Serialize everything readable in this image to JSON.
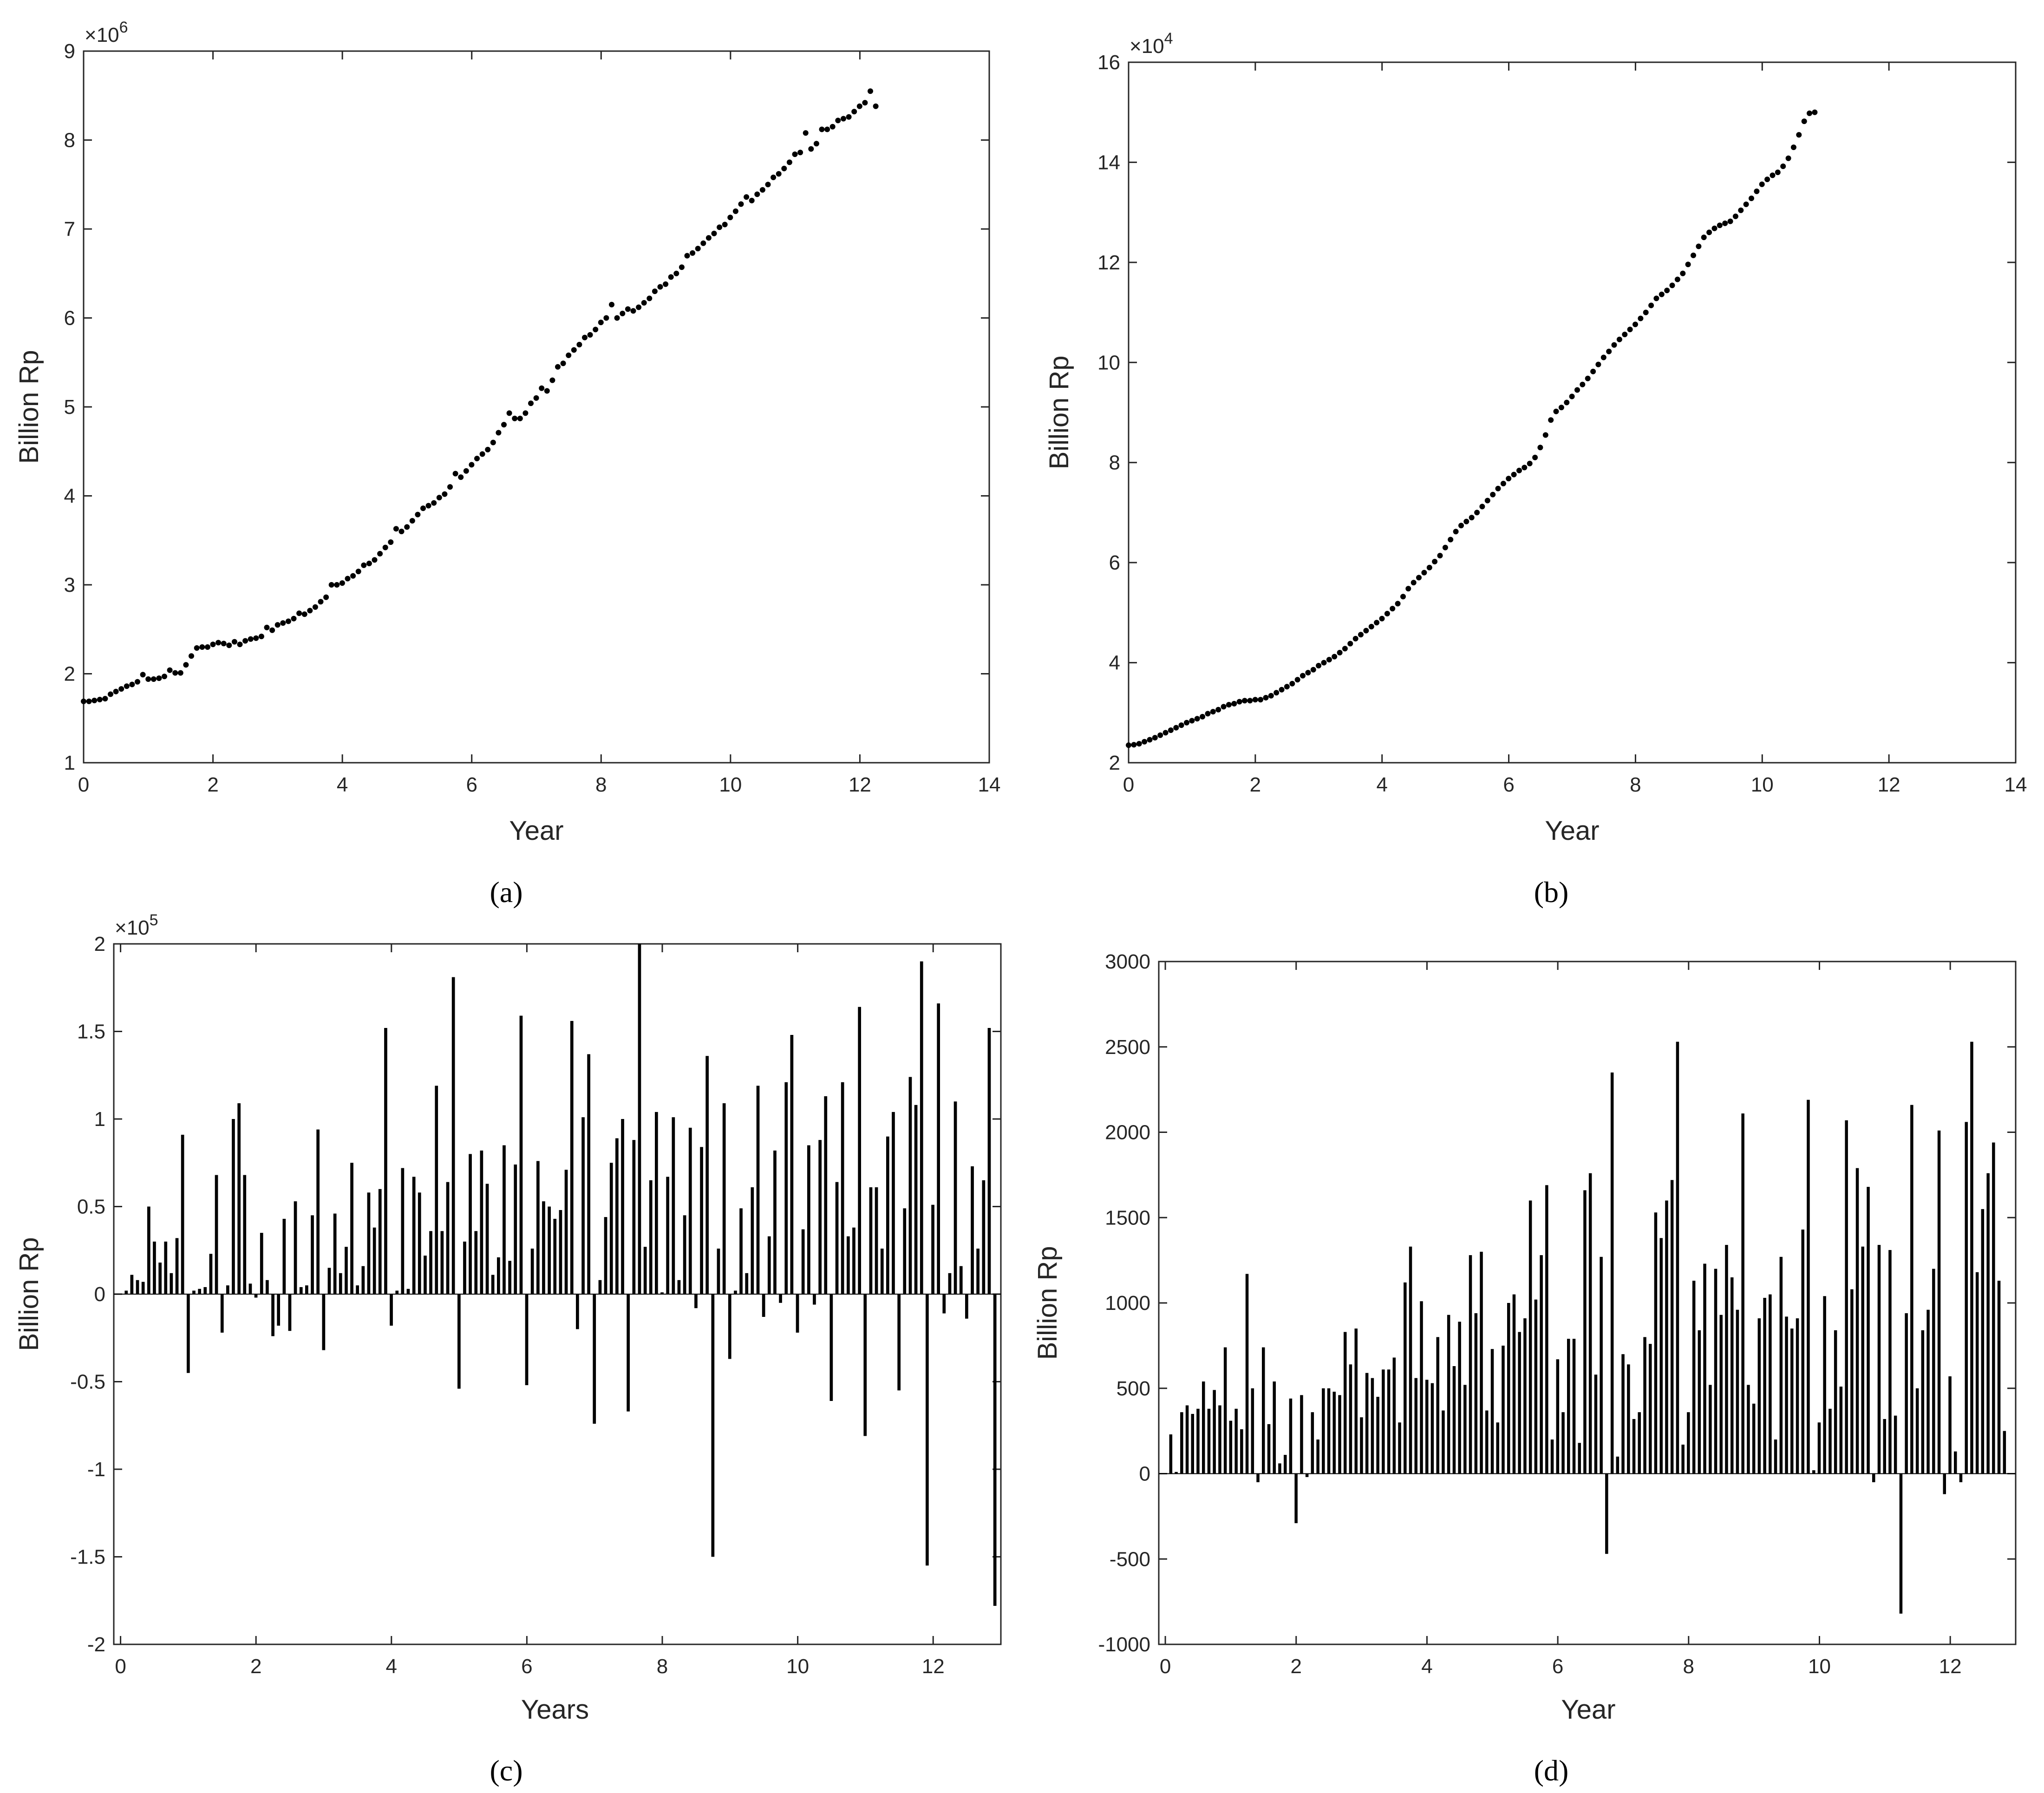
{
  "colors": {
    "marker": "#000000",
    "axis": "#262626",
    "background": "#ffffff"
  },
  "chart_data": [
    {
      "id": "a",
      "panel_label": "(a)",
      "type": "scatter",
      "xlabel": "Year",
      "ylabel": "Billion Rp",
      "exponent": "×10^6",
      "exp_base": "×10",
      "exp_power": "6",
      "xlim": [
        0,
        14
      ],
      "ylim": [
        1,
        9
      ],
      "x_ticks": [
        0,
        2,
        4,
        6,
        8,
        10,
        12,
        14
      ],
      "y_ticks": [
        1,
        2,
        3,
        4,
        5,
        6,
        7,
        8,
        9
      ],
      "x_tick_labels": [
        "0",
        "2",
        "4",
        "6",
        "8",
        "10",
        "12",
        "14"
      ],
      "y_tick_labels": [
        "1",
        "2",
        "3",
        "4",
        "5",
        "6",
        "7",
        "8",
        "9"
      ],
      "x_start": 0,
      "x_step": 0.0833,
      "y": [
        1.69,
        1.69,
        1.7,
        1.71,
        1.72,
        1.77,
        1.8,
        1.83,
        1.86,
        1.88,
        1.91,
        1.99,
        1.94,
        1.94,
        1.95,
        1.97,
        2.04,
        2.01,
        2.01,
        2.1,
        2.2,
        2.29,
        2.3,
        2.3,
        2.33,
        2.35,
        2.34,
        2.32,
        2.36,
        2.33,
        2.37,
        2.39,
        2.4,
        2.42,
        2.52,
        2.49,
        2.55,
        2.57,
        2.59,
        2.62,
        2.68,
        2.67,
        2.71,
        2.75,
        2.81,
        2.86,
        3.0,
        3.0,
        3.02,
        3.07,
        3.1,
        3.15,
        3.22,
        3.24,
        3.28,
        3.35,
        3.42,
        3.48,
        3.63,
        3.6,
        3.65,
        3.72,
        3.79,
        3.86,
        3.89,
        3.92,
        3.98,
        4.02,
        4.1,
        4.25,
        4.21,
        4.28,
        4.35,
        4.42,
        4.47,
        4.52,
        4.6,
        4.71,
        4.8,
        4.93,
        4.87,
        4.87,
        4.93,
        5.04,
        5.1,
        5.21,
        5.18,
        5.3,
        5.45,
        5.49,
        5.58,
        5.64,
        5.7,
        5.78,
        5.81,
        5.87,
        5.95,
        6.0,
        6.15,
        6.0,
        6.05,
        6.1,
        6.08,
        6.12,
        6.17,
        6.22,
        6.3,
        6.35,
        6.38,
        6.46,
        6.5,
        6.57,
        6.7,
        6.73,
        6.78,
        6.84,
        6.9,
        6.95,
        7.02,
        7.05,
        7.13,
        7.2,
        7.28,
        7.36,
        7.32,
        7.39,
        7.44,
        7.5,
        7.58,
        7.62,
        7.68,
        7.75,
        7.84,
        7.86,
        8.08,
        7.9,
        7.96,
        8.12,
        8.12,
        8.15,
        8.22,
        8.24,
        8.26,
        8.32,
        8.38,
        8.42,
        8.55,
        8.38
      ]
    },
    {
      "id": "b",
      "panel_label": "(b)",
      "type": "scatter",
      "xlabel": "Year",
      "ylabel": "Billion Rp",
      "exponent": "×10^4",
      "exp_base": "×10",
      "exp_power": "4",
      "xlim": [
        0,
        14
      ],
      "ylim": [
        2,
        16
      ],
      "x_ticks": [
        0,
        2,
        4,
        6,
        8,
        10,
        12,
        14
      ],
      "y_ticks": [
        2,
        4,
        6,
        8,
        10,
        12,
        14,
        16
      ],
      "x_tick_labels": [
        "0",
        "2",
        "4",
        "6",
        "8",
        "10",
        "12",
        "14"
      ],
      "y_tick_labels": [
        "2",
        "4",
        "6",
        "8",
        "10",
        "12",
        "14",
        "16"
      ],
      "x_start": 0,
      "x_step": 0.0833,
      "y": [
        2.35,
        2.36,
        2.38,
        2.42,
        2.46,
        2.5,
        2.55,
        2.6,
        2.65,
        2.7,
        2.75,
        2.8,
        2.84,
        2.88,
        2.92,
        2.98,
        3.02,
        3.06,
        3.12,
        3.16,
        3.18,
        3.22,
        3.24,
        3.24,
        3.26,
        3.26,
        3.3,
        3.34,
        3.4,
        3.46,
        3.52,
        3.58,
        3.66,
        3.74,
        3.8,
        3.86,
        3.94,
        4.0,
        4.06,
        4.12,
        4.2,
        4.28,
        4.38,
        4.48,
        4.56,
        4.64,
        4.72,
        4.8,
        4.88,
        4.98,
        5.08,
        5.18,
        5.32,
        5.48,
        5.6,
        5.7,
        5.8,
        5.9,
        6.02,
        6.14,
        6.3,
        6.46,
        6.62,
        6.74,
        6.82,
        6.9,
        7.0,
        7.12,
        7.24,
        7.36,
        7.48,
        7.58,
        7.68,
        7.76,
        7.84,
        7.9,
        7.98,
        8.1,
        8.3,
        8.55,
        8.85,
        9.02,
        9.1,
        9.2,
        9.32,
        9.45,
        9.56,
        9.68,
        9.82,
        9.96,
        10.1,
        10.22,
        10.35,
        10.46,
        10.56,
        10.66,
        10.76,
        10.88,
        11.0,
        11.14,
        11.28,
        11.36,
        11.44,
        11.54,
        11.66,
        11.78,
        11.96,
        12.14,
        12.32,
        12.5,
        12.6,
        12.68,
        12.74,
        12.78,
        12.82,
        12.92,
        13.04,
        13.16,
        13.28,
        13.42,
        13.56,
        13.66,
        13.74,
        13.8,
        13.92,
        14.08,
        14.3,
        14.55,
        14.82,
        14.98,
        15.0
      ]
    },
    {
      "id": "c",
      "panel_label": "(c)",
      "type": "bar",
      "xlabel": "Years",
      "ylabel": "Billion Rp",
      "exponent": "×10^5",
      "exp_base": "×10",
      "exp_power": "5",
      "xlim": [
        -0.1,
        13
      ],
      "ylim": [
        -2,
        2
      ],
      "x_ticks": [
        0,
        2,
        4,
        6,
        8,
        10,
        12
      ],
      "y_ticks": [
        -2,
        -1.5,
        -1,
        -0.5,
        0,
        0.5,
        1,
        1.5,
        2
      ],
      "x_tick_labels": [
        "0",
        "2",
        "4",
        "6",
        "8",
        "10",
        "12"
      ],
      "y_tick_labels": [
        "-2",
        "-1.5",
        "-1",
        "-0.5",
        "0",
        "0.5",
        "1",
        "1.5",
        "2"
      ],
      "x_start": 0.0833,
      "x_step": 0.0833,
      "values": [
        0.02,
        0.11,
        0.08,
        0.07,
        0.5,
        0.3,
        0.18,
        0.3,
        0.12,
        0.32,
        0.91,
        -0.45,
        0.02,
        0.03,
        0.04,
        0.23,
        0.68,
        -0.22,
        0.05,
        1.0,
        1.09,
        0.68,
        0.06,
        -0.02,
        0.35,
        0.08,
        -0.24,
        -0.18,
        0.43,
        -0.21,
        0.53,
        0.04,
        0.05,
        0.45,
        0.94,
        -0.32,
        0.15,
        0.46,
        0.12,
        0.27,
        0.75,
        0.05,
        0.16,
        0.58,
        0.38,
        0.6,
        1.52,
        -0.18,
        0.02,
        0.72,
        0.03,
        0.67,
        0.58,
        0.22,
        0.36,
        1.19,
        0.36,
        0.64,
        1.81,
        -0.54,
        0.3,
        0.8,
        0.36,
        0.82,
        0.63,
        0.11,
        0.21,
        0.85,
        0.19,
        0.74,
        1.59,
        -0.52,
        0.26,
        0.76,
        0.53,
        0.5,
        0.43,
        0.48,
        0.71,
        1.56,
        -0.2,
        1.01,
        1.37,
        -0.74,
        0.08,
        0.44,
        0.75,
        0.89,
        1.0,
        -0.67,
        0.88,
        2.0,
        0.27,
        0.65,
        1.04,
        0.01,
        0.67,
        1.01,
        0.08,
        0.45,
        0.95,
        -0.08,
        0.84,
        1.36,
        -1.5,
        0.26,
        1.09,
        -0.37,
        0.02,
        0.49,
        0.12,
        0.61,
        1.19,
        -0.13,
        0.33,
        0.82,
        -0.05,
        1.21,
        1.48,
        -0.22,
        0.37,
        0.85,
        -0.06,
        0.88,
        1.13,
        -0.61,
        0.64,
        1.21,
        0.33,
        0.38,
        1.64,
        -0.81,
        0.61,
        0.61,
        0.26,
        0.9,
        1.04,
        -0.55,
        0.49,
        1.24,
        1.08,
        1.9,
        -1.55,
        0.51,
        1.66,
        -0.11,
        0.12,
        1.1,
        0.16,
        -0.14,
        0.73,
        0.26,
        0.65,
        1.52,
        -1.78
      ]
    },
    {
      "id": "d",
      "panel_label": "(d)",
      "type": "bar",
      "xlabel": "Year",
      "ylabel": "Billion Rp",
      "exponent": "",
      "exp_base": "",
      "exp_power": "",
      "xlim": [
        -0.1,
        13
      ],
      "ylim": [
        -1000,
        3000
      ],
      "x_ticks": [
        0,
        2,
        4,
        6,
        8,
        10,
        12
      ],
      "y_ticks": [
        -1000,
        -500,
        0,
        500,
        1000,
        1500,
        2000,
        2500,
        3000
      ],
      "x_tick_labels": [
        "0",
        "2",
        "4",
        "6",
        "8",
        "10",
        "12"
      ],
      "y_tick_labels": [
        "-1000",
        "-500",
        "0",
        "500",
        "1000",
        "1500",
        "2000",
        "2500",
        "3000"
      ],
      "x_start": 0.0833,
      "x_step": 0.0833,
      "values": [
        230,
        10,
        360,
        400,
        350,
        380,
        540,
        380,
        490,
        400,
        740,
        310,
        380,
        260,
        1170,
        500,
        -50,
        740,
        290,
        540,
        60,
        110,
        440,
        -290,
        460,
        -20,
        360,
        200,
        500,
        500,
        480,
        460,
        830,
        640,
        850,
        330,
        590,
        560,
        450,
        610,
        610,
        680,
        300,
        1120,
        1330,
        560,
        1010,
        550,
        530,
        800,
        370,
        930,
        630,
        890,
        520,
        1280,
        940,
        1300,
        370,
        730,
        300,
        750,
        1000,
        1050,
        830,
        910,
        1600,
        1020,
        1280,
        1690,
        200,
        670,
        360,
        790,
        790,
        180,
        1660,
        1760,
        580,
        1270,
        -470,
        2350,
        100,
        700,
        640,
        320,
        360,
        800,
        760,
        1530,
        1380,
        1600,
        1720,
        2530,
        170,
        360,
        1130,
        840,
        1230,
        520,
        1200,
        930,
        1340,
        1150,
        960,
        2110,
        520,
        410,
        910,
        1030,
        1050,
        200,
        1270,
        920,
        850,
        910,
        1430,
        2190,
        20,
        300,
        1040,
        380,
        840,
        510,
        2070,
        1080,
        1790,
        1330,
        1680,
        -50,
        1340,
        320,
        1310,
        340,
        -820,
        940,
        2160,
        500,
        840,
        960,
        1200,
        2010,
        -120,
        570,
        130,
        -50,
        2060,
        2530,
        1180,
        1550,
        1760,
        1940,
        1130,
        250
      ]
    }
  ]
}
